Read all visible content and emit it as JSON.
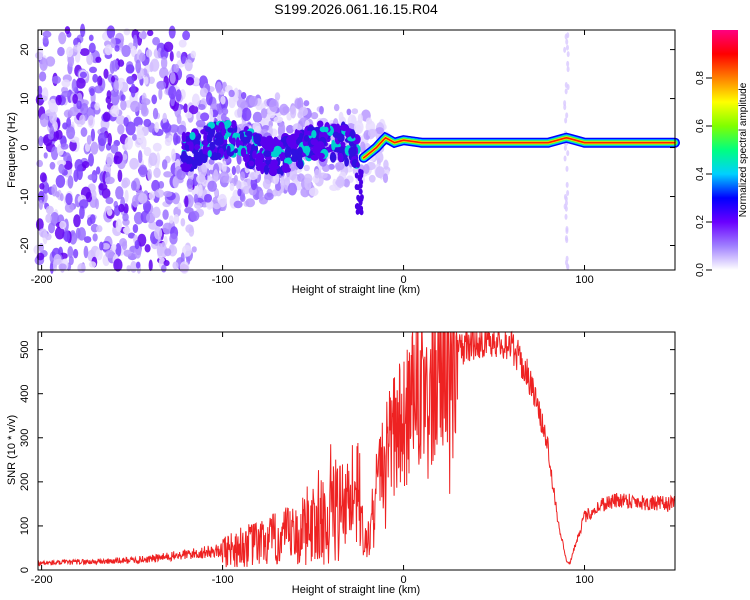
{
  "figure": {
    "title": "S199.2026.061.16.15.R04"
  },
  "chart_data": [
    {
      "type": "heatmap",
      "name": "spectrogram",
      "xlabel": "Height of straight line (km)",
      "ylabel": "Frequency (Hz)",
      "xlim": [
        -202,
        150
      ],
      "ylim": [
        -25,
        24
      ],
      "xticks": [
        -200,
        -100,
        0,
        100
      ],
      "yticks": [
        -20,
        -10,
        0,
        10,
        20
      ],
      "colorbar": {
        "label": "Normalized spectral amplitude",
        "range": [
          0,
          1
        ],
        "ticks": [
          "0.0",
          "0.2",
          "0.4",
          "0.6",
          "0.8"
        ],
        "colors": [
          "#ffffff",
          "#a080ff",
          "#6a00ff",
          "#0000ff",
          "#00d0ff",
          "#00ff80",
          "#80ff00",
          "#ffff00",
          "#ff8000",
          "#ff0000",
          "#ff0080"
        ]
      },
      "center_line": {
        "x": [
          -25,
          -20,
          -15,
          -10,
          -5,
          0,
          10,
          20,
          40,
          60,
          80,
          90,
          100,
          120,
          150
        ],
        "y": [
          -3,
          -1.5,
          0,
          2,
          1,
          1.5,
          1,
          1,
          1,
          1,
          1,
          2,
          1,
          1,
          1
        ]
      }
    },
    {
      "type": "line",
      "name": "snr",
      "xlabel": "Height of straight line (km)",
      "ylabel": "SNR (10 * v/v)",
      "xlim": [
        -202,
        150
      ],
      "ylim": [
        0,
        540
      ],
      "xticks": [
        -200,
        -100,
        0,
        100
      ],
      "yticks": [
        0,
        100,
        200,
        300,
        400,
        500
      ],
      "series": [
        {
          "name": "SNR",
          "color": "#ee2222",
          "x": [
            -202,
            -180,
            -160,
            -140,
            -120,
            -100,
            -80,
            -60,
            -50,
            -40,
            -30,
            -25,
            -20,
            -18,
            -15,
            -10,
            -5,
            0,
            10,
            20,
            30,
            40,
            50,
            60,
            70,
            80,
            85,
            90,
            92,
            95,
            100,
            110,
            120,
            130,
            140,
            150
          ],
          "y": [
            15,
            18,
            20,
            25,
            35,
            45,
            60,
            80,
            100,
            120,
            140,
            120,
            40,
            120,
            200,
            260,
            310,
            350,
            420,
            470,
            500,
            520,
            525,
            510,
            430,
            280,
            120,
            20,
            15,
            60,
            120,
            150,
            160,
            155,
            150,
            150
          ]
        }
      ]
    }
  ]
}
